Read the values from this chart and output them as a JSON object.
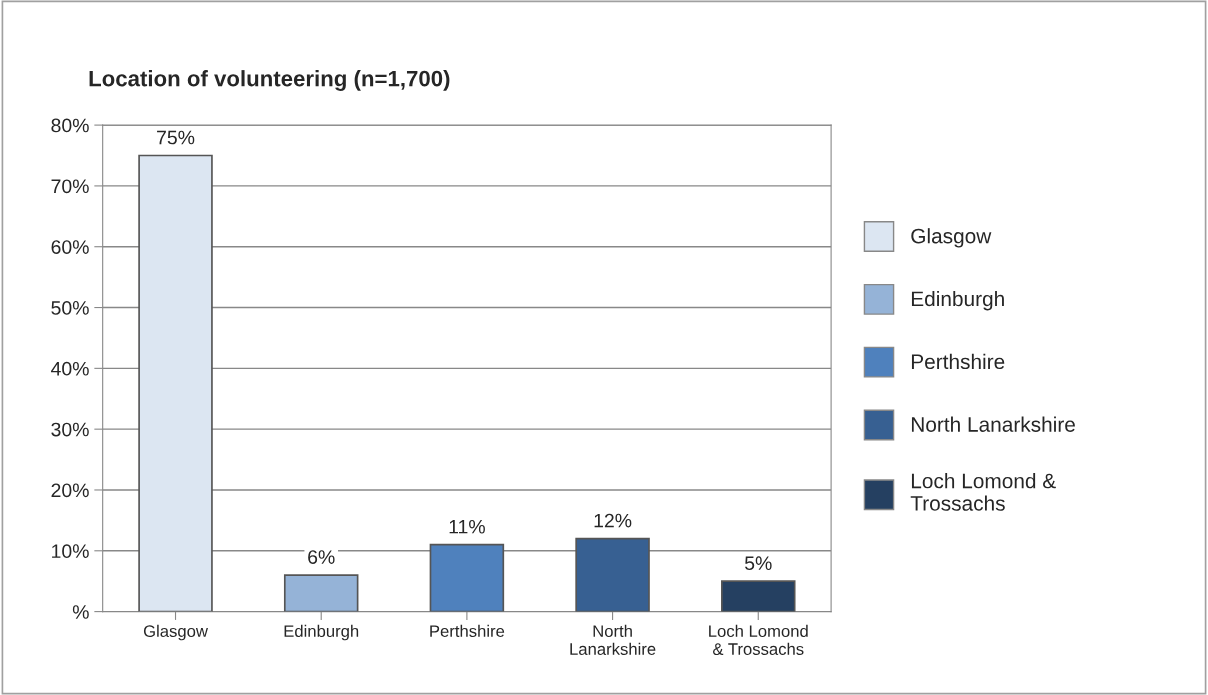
{
  "chart_data": {
    "type": "bar",
    "title": "Location of volunteering (n=1,700)",
    "categories": [
      "Glasgow",
      "Edinburgh",
      "Perthshire",
      "North\nLanarkshire",
      "Loch Lomond\n& Trossachs"
    ],
    "series": [
      {
        "name": "Glasgow",
        "color": "#dce6f2",
        "values": [
          75,
          null,
          null,
          null,
          null
        ],
        "value_labels": [
          "75%",
          null,
          null,
          null,
          null
        ]
      },
      {
        "name": "Edinburgh",
        "color": "#95b3d7",
        "values": [
          null,
          6,
          null,
          null,
          null
        ],
        "value_labels": [
          null,
          "6%",
          null,
          null,
          null
        ]
      },
      {
        "name": "Perthshire",
        "color": "#4f81bd",
        "values": [
          null,
          null,
          11,
          null,
          null
        ],
        "value_labels": [
          null,
          null,
          "11%",
          null,
          null
        ]
      },
      {
        "name": "North Lanarkshire",
        "color": "#376092",
        "values": [
          null,
          null,
          null,
          12,
          null
        ],
        "value_labels": [
          null,
          null,
          null,
          "12%",
          null
        ]
      },
      {
        "name": "Loch Lomond &\nTrossachs",
        "color": "#254061",
        "values": [
          null,
          null,
          null,
          null,
          5
        ],
        "value_labels": [
          null,
          null,
          null,
          null,
          "5%"
        ]
      }
    ],
    "ylim": [
      0,
      80
    ],
    "yticks": [
      {
        "value": 0,
        "label": "%"
      },
      {
        "value": 10,
        "label": "10%"
      },
      {
        "value": 20,
        "label": "20%"
      },
      {
        "value": 30,
        "label": "30%"
      },
      {
        "value": 40,
        "label": "40%"
      },
      {
        "value": 50,
        "label": "50%"
      },
      {
        "value": 60,
        "label": "60%"
      },
      {
        "value": 70,
        "label": "70%"
      },
      {
        "value": 80,
        "label": "80%"
      }
    ],
    "grid": "y",
    "legend": "right"
  }
}
